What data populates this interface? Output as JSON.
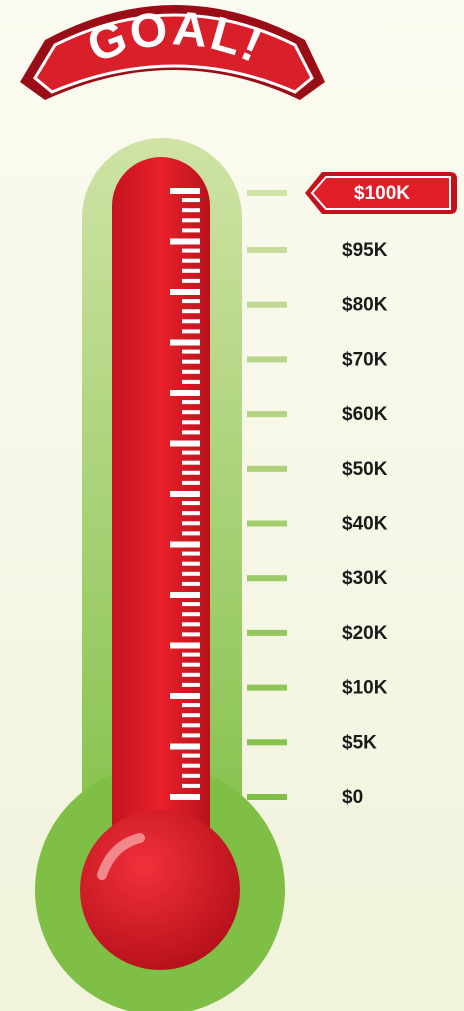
{
  "title": "GOAL!",
  "goal_label": "$100K",
  "scale_labels": [
    "$95K",
    "$80K",
    "$70K",
    "$60K",
    "$50K",
    "$40K",
    "$30K",
    "$20K",
    "$10K",
    "$5K",
    "$0"
  ]
}
